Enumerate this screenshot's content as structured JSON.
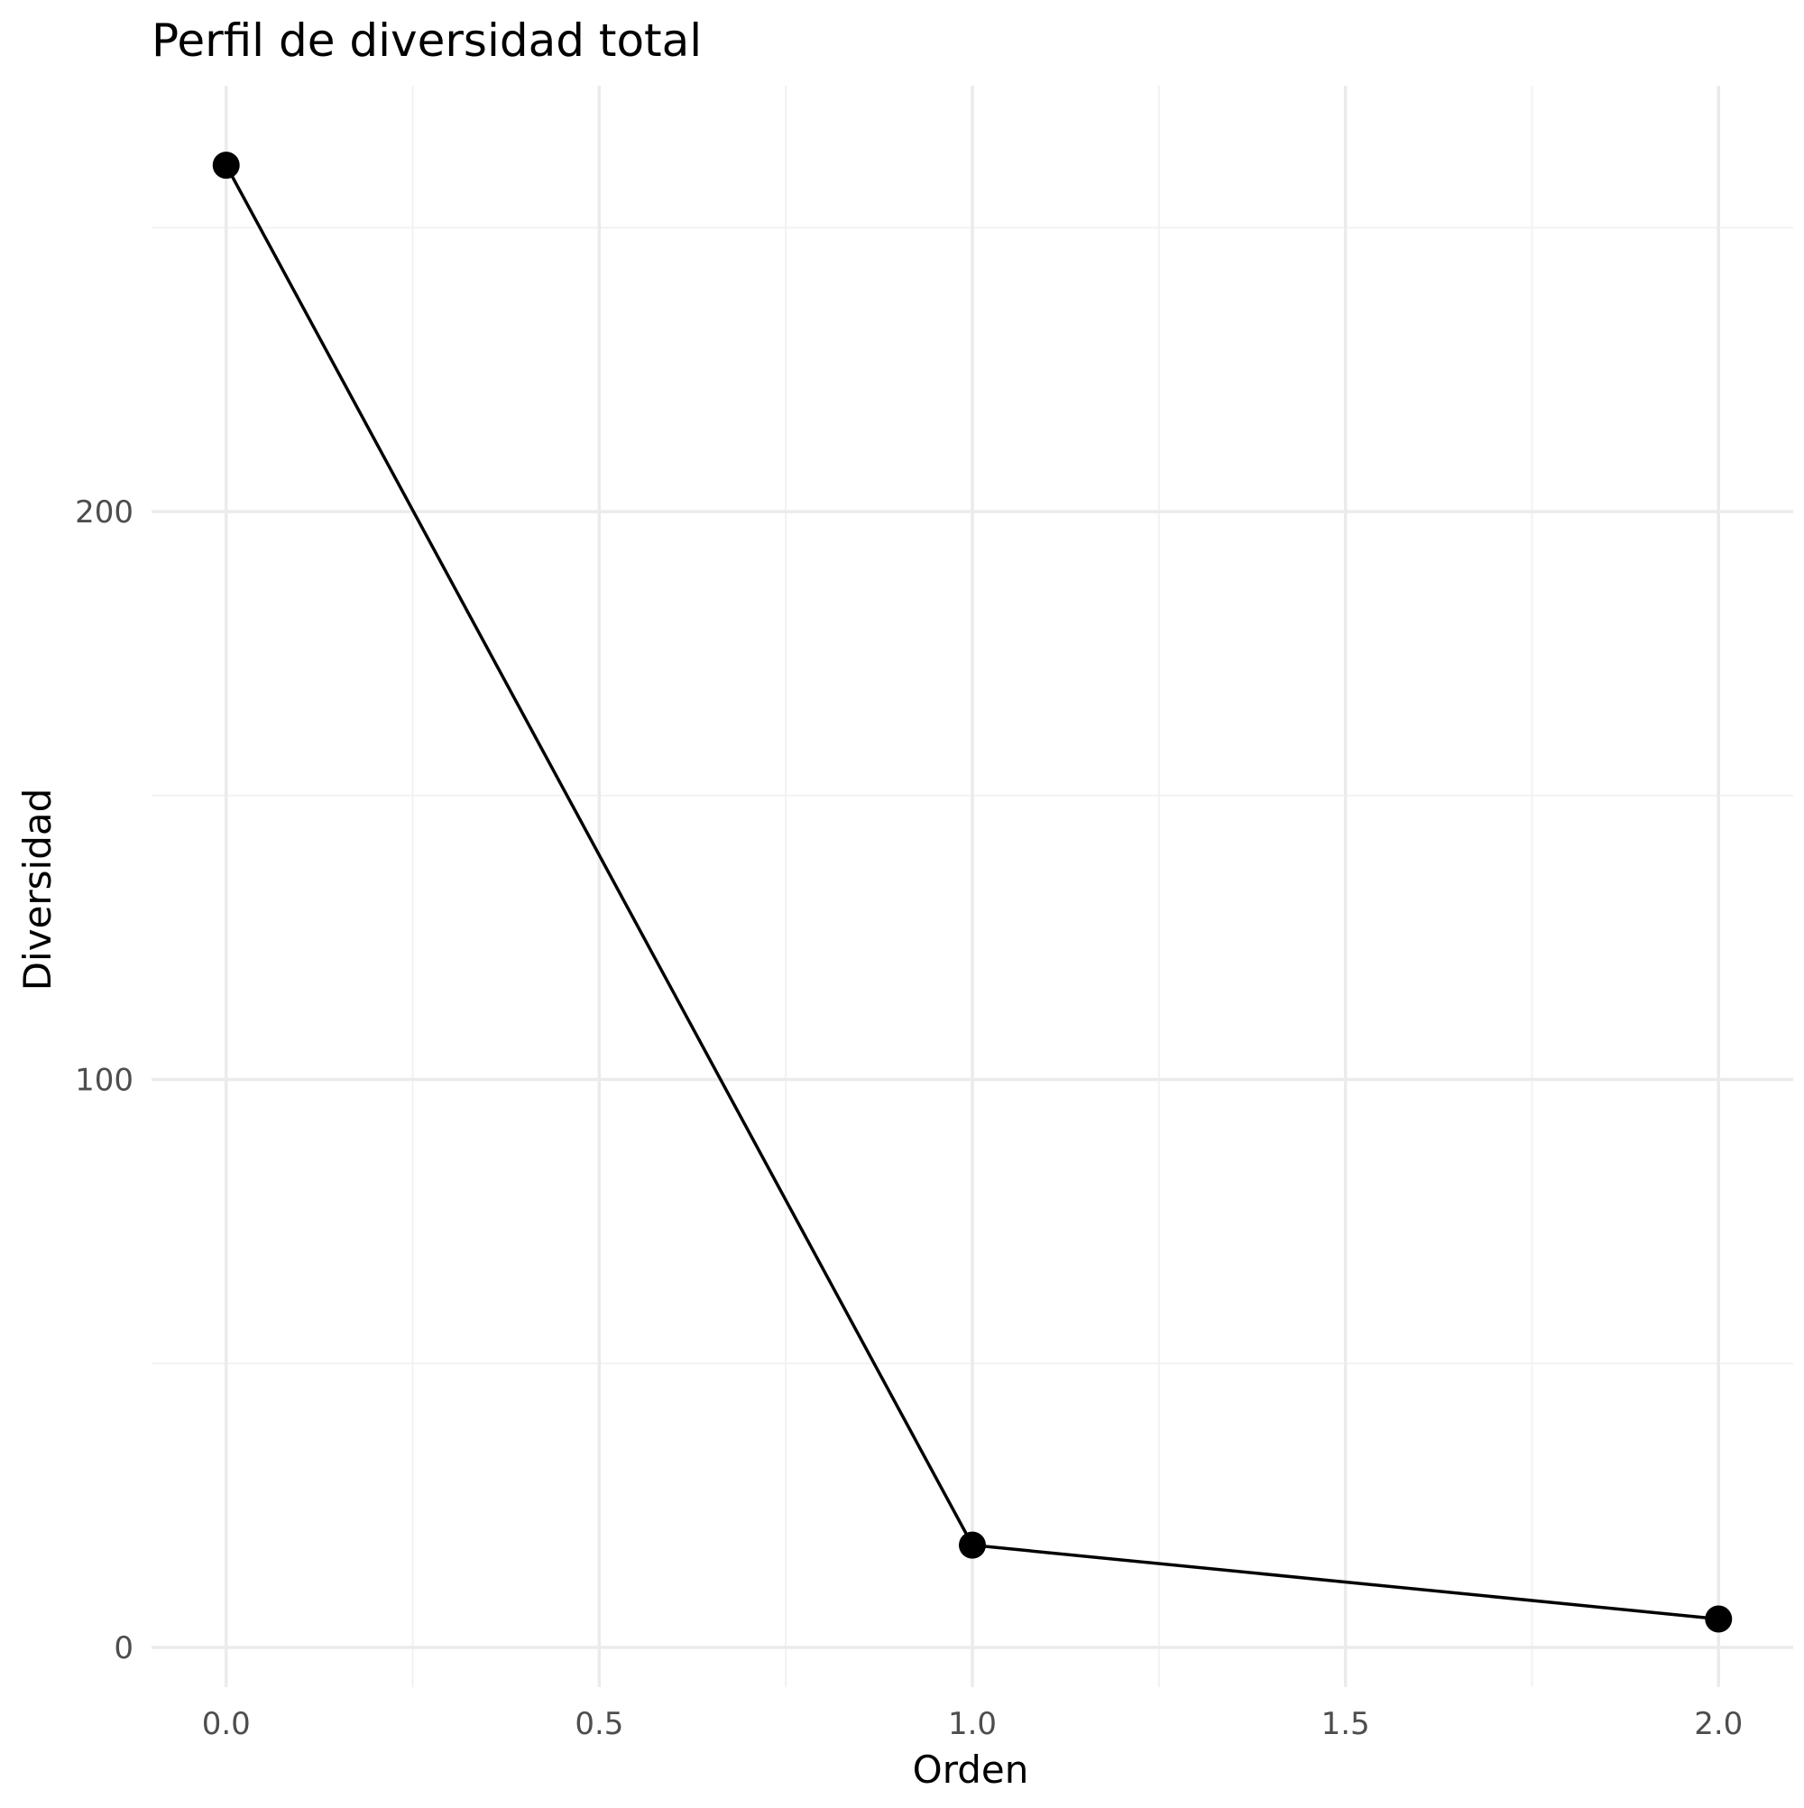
{
  "chart_data": {
    "type": "line",
    "title": "Perfil de diversidad total",
    "xlabel": "Orden",
    "ylabel": "Diversidad",
    "x": [
      0,
      1,
      2
    ],
    "series": [
      {
        "values": [
          261,
          18,
          5
        ]
      }
    ],
    "xlim": [
      -0.1,
      2.1
    ],
    "ylim": [
      -7,
      275
    ],
    "x_ticks": [
      0,
      0.5,
      1,
      1.5,
      2
    ],
    "x_tick_labels": [
      "0.0",
      "0.5",
      "1.0",
      "1.5",
      "2.0"
    ],
    "x_minor_ticks": [
      0.25,
      0.75,
      1.25,
      1.75
    ],
    "y_ticks": [
      0,
      100,
      200
    ],
    "y_tick_labels": [
      "0",
      "100",
      "200"
    ],
    "y_minor_ticks": [
      50,
      150,
      250
    ],
    "grid": true,
    "legend": "none",
    "colors": {
      "line": "#000000",
      "point": "#000000",
      "grid_major": "#ebebeb",
      "grid_minor": "#f2f2f2",
      "tick_text": "#4d4d4d"
    }
  }
}
